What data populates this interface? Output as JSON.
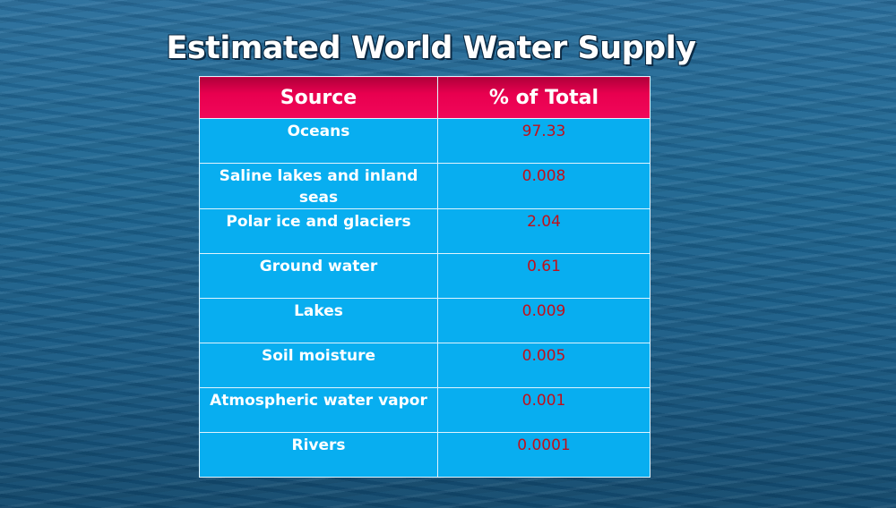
{
  "title": "Estimated World Water Supply",
  "table": {
    "header": [
      "Source",
      "% of Total"
    ],
    "rows": [
      [
        "Oceans",
        "97.33"
      ],
      [
        "Saline lakes and  inland seas",
        "0.008"
      ],
      [
        "Polar ice and glaciers",
        "2.04"
      ],
      [
        "Ground water",
        "0.61"
      ],
      [
        "Lakes",
        "0.009"
      ],
      [
        "Soil moisture",
        "0.005"
      ],
      [
        "Atmospheric water vapor",
        "0.001"
      ],
      [
        "Rivers",
        "0.0001"
      ]
    ]
  }
}
